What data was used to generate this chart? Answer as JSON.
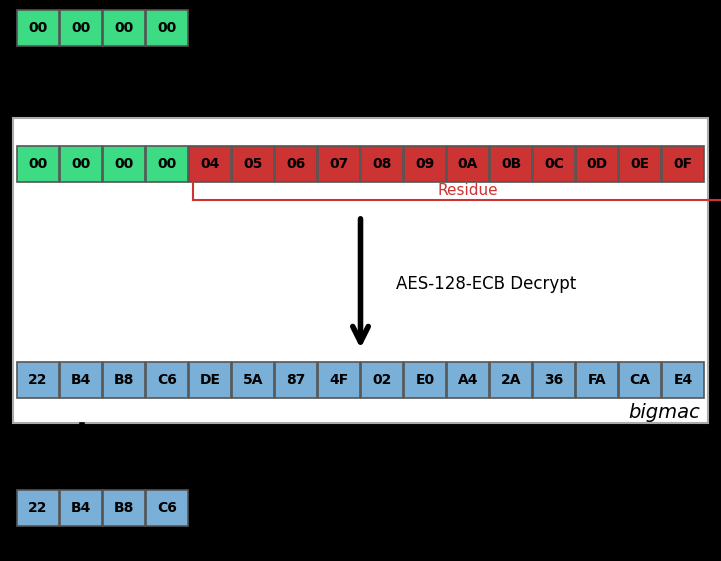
{
  "background_color": "#000000",
  "white_box_color": "#ffffff",
  "green_color": "#3ddc84",
  "red_color": "#cc3333",
  "blue_color": "#7ab0d8",
  "top_green_boxes": [
    "00",
    "00",
    "00",
    "00"
  ],
  "middle_row_green": [
    "00",
    "00",
    "00",
    "00"
  ],
  "middle_row_red": [
    "04",
    "05",
    "06",
    "07",
    "08",
    "09",
    "0A",
    "0B",
    "0C",
    "0D",
    "0E",
    "0F"
  ],
  "bottom_row": [
    "22",
    "B4",
    "B8",
    "C6",
    "DE",
    "5A",
    "87",
    "4F",
    "02",
    "E0",
    "A4",
    "2A",
    "36",
    "FA",
    "CA",
    "E4"
  ],
  "last_row": [
    "22",
    "B4",
    "B8",
    "C6"
  ],
  "residue_label": "Residue",
  "aes_label": "AES-128-ECB Decrypt",
  "bigmac_label": "bigmac",
  "residue_color": "#cc3333",
  "arrow_color": "#000000",
  "white_border_color": "#aaaaaa"
}
